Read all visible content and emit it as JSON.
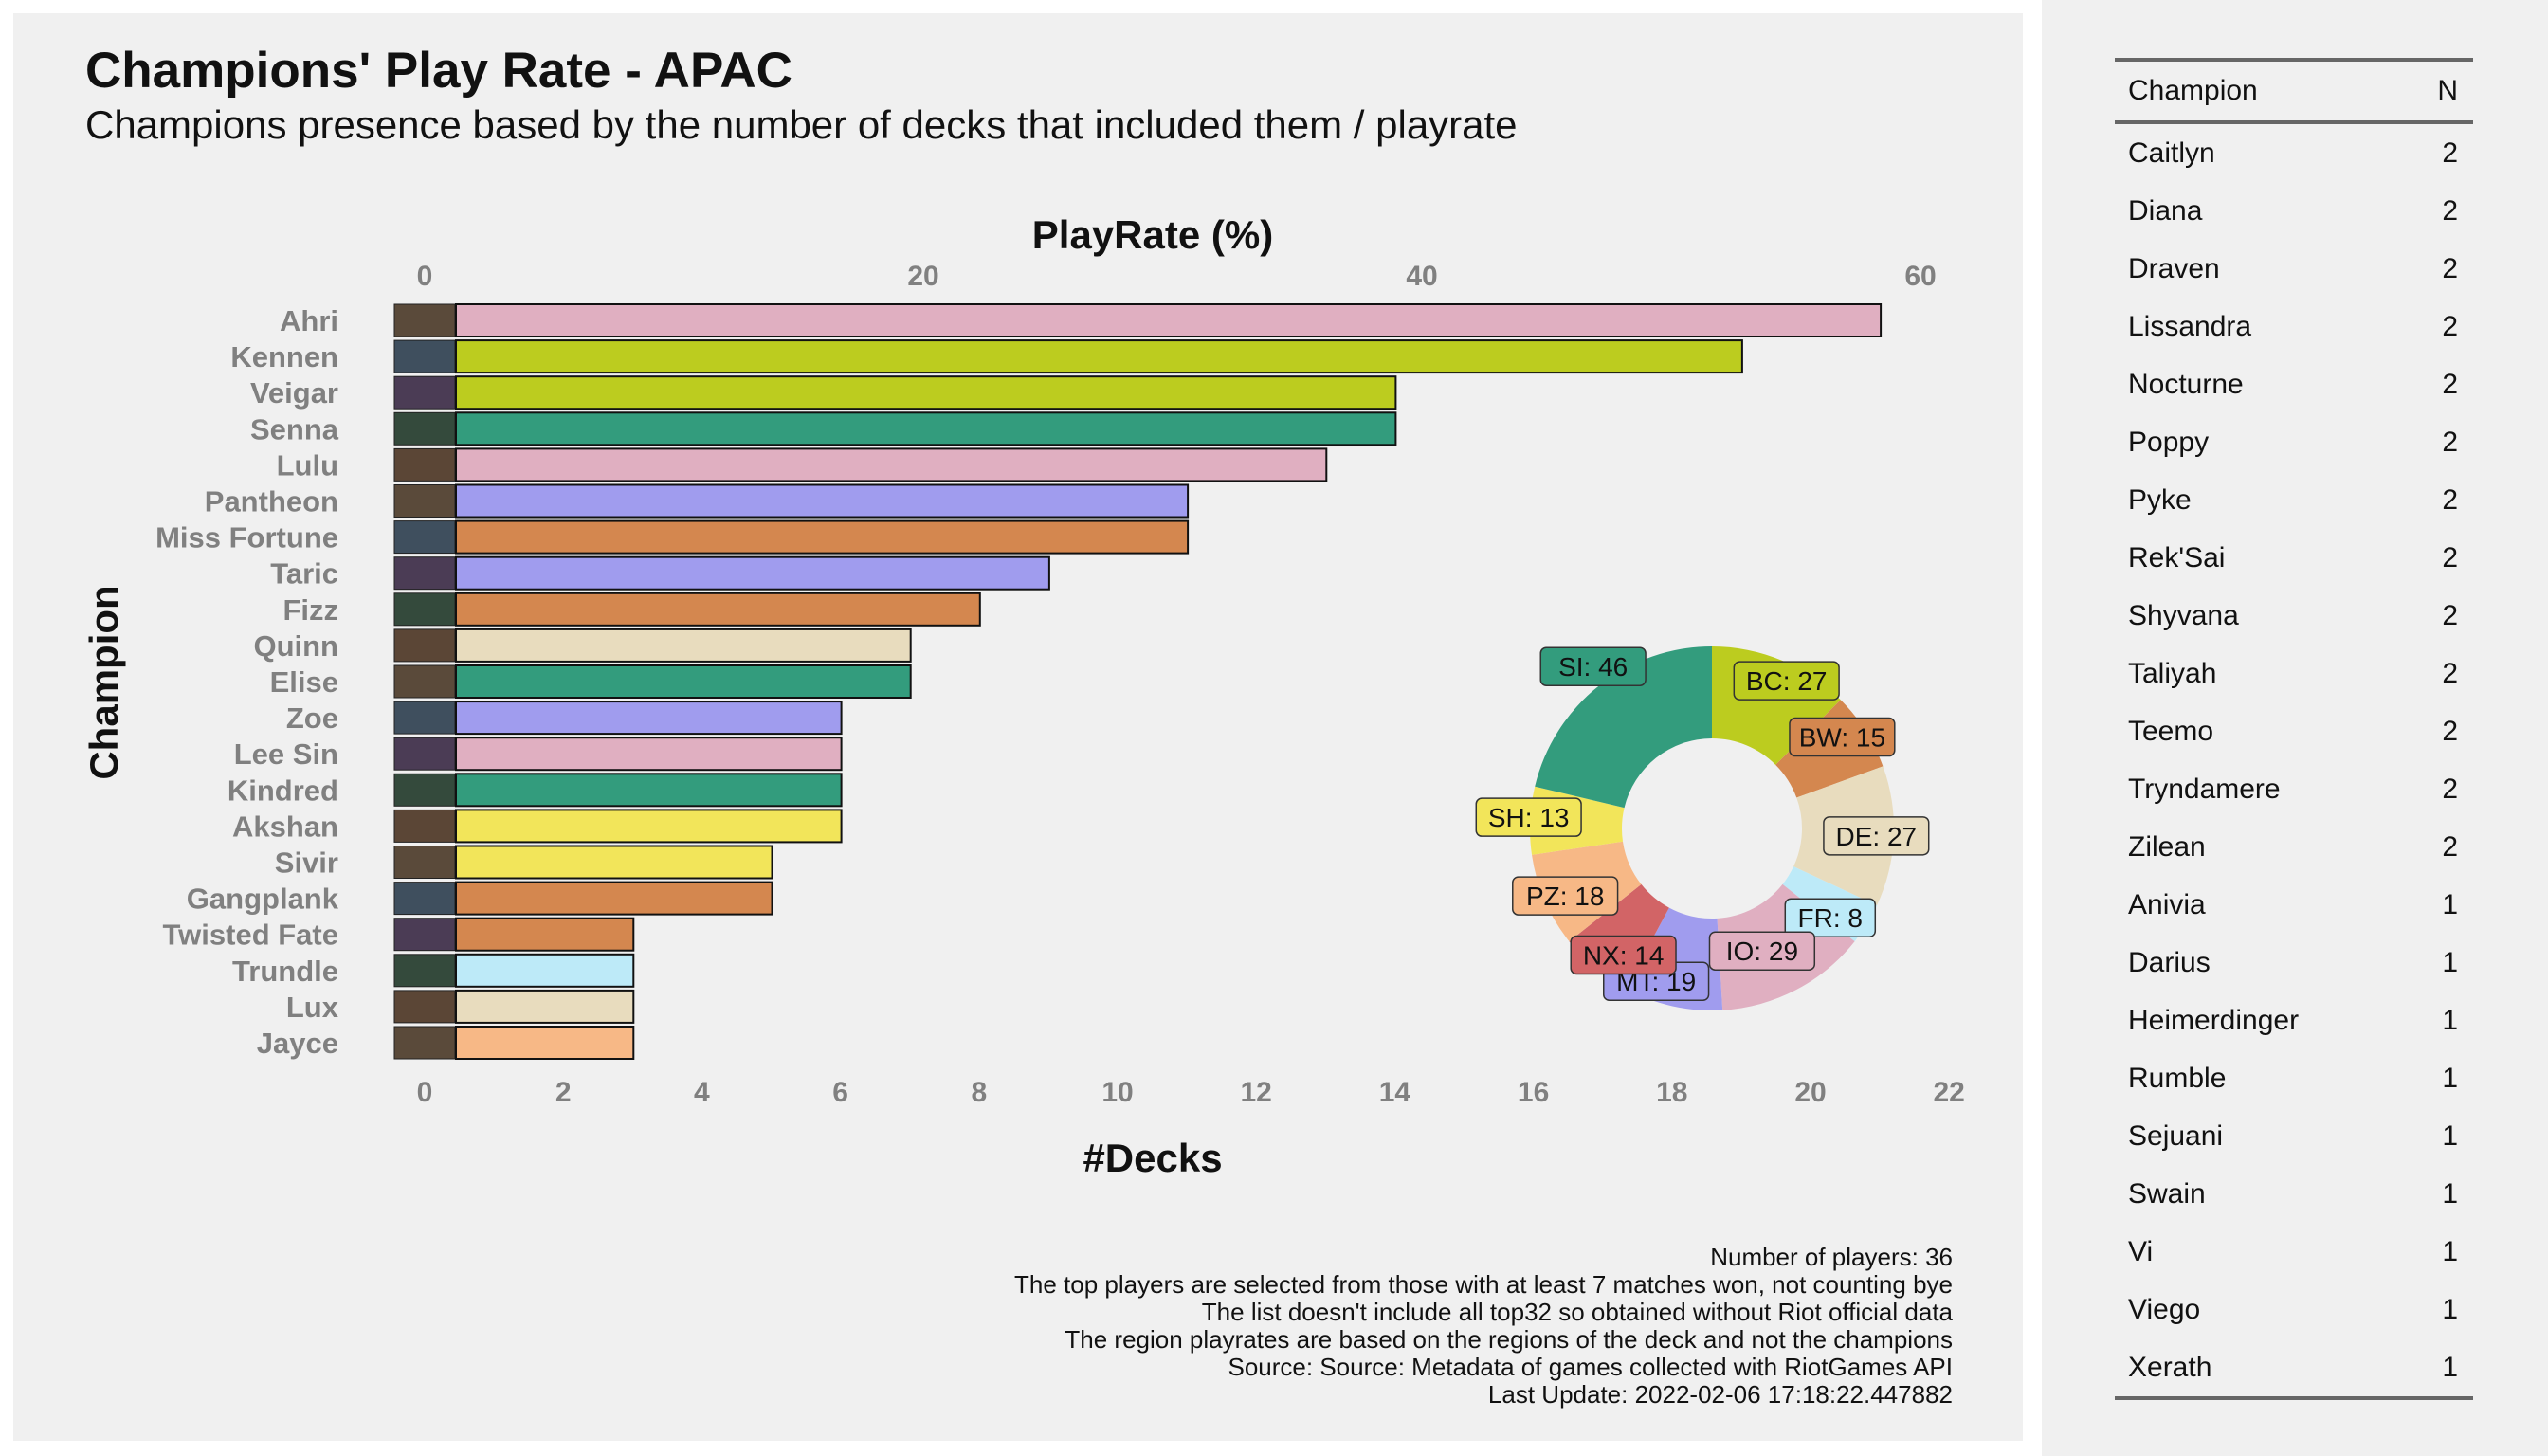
{
  "header": {
    "title": "Champions' Play Rate - APAC",
    "subtitle": "Champions presence based by the number of decks that included them / playrate"
  },
  "chart_data": [
    {
      "type": "bar",
      "orientation": "horizontal",
      "title": "Champions' Play Rate - APAC",
      "xlabel": "#Decks",
      "x2label": "PlayRate (%)",
      "ylabel": "Champion",
      "xlim": [
        0,
        22
      ],
      "x_ticks": [
        0,
        2,
        4,
        6,
        8,
        10,
        12,
        14,
        16,
        18,
        20,
        22
      ],
      "x2_ticks": [
        0,
        20,
        40,
        60
      ],
      "categories": [
        "Ahri",
        "Kennen",
        "Veigar",
        "Senna",
        "Lulu",
        "Pantheon",
        "Miss Fortune",
        "Taric",
        "Fizz",
        "Quinn",
        "Elise",
        "Zoe",
        "Lee Sin",
        "Kindred",
        "Akshan",
        "Sivir",
        "Gangplank",
        "Twisted Fate",
        "Trundle",
        "Lux",
        "Jayce"
      ],
      "values": [
        21,
        19,
        14,
        14,
        13,
        11,
        11,
        9,
        8,
        7,
        7,
        6,
        6,
        6,
        6,
        5,
        5,
        3,
        3,
        3,
        3
      ],
      "colors": [
        "#e0afc1",
        "#bccc1f",
        "#bccc1f",
        "#339c7d",
        "#e0afc1",
        "#a09cee",
        "#d4874f",
        "#a09cee",
        "#d4874f",
        "#e8dcbe",
        "#339c7d",
        "#a09cee",
        "#e0afc1",
        "#339c7d",
        "#f2e55a",
        "#f2e55a",
        "#d4874f",
        "#d4874f",
        "#bdeaf8",
        "#e8dcbe",
        "#f7b886"
      ]
    },
    {
      "type": "pie",
      "variant": "donut",
      "labels": [
        "BC",
        "BW",
        "DE",
        "FR",
        "IO",
        "MT",
        "NX",
        "PZ",
        "SH",
        "SI"
      ],
      "values": [
        27,
        15,
        27,
        8,
        29,
        19,
        14,
        18,
        13,
        46
      ],
      "label_texts": [
        "BC: 27",
        "BW: 15",
        "DE: 27",
        "FR: 8",
        "IO: 29",
        "MT: 19",
        "NX: 14",
        "PZ: 18",
        "SH: 13",
        "SI: 46"
      ],
      "colors": [
        "#bccc1f",
        "#d4874f",
        "#e8dcbe",
        "#bdeaf8",
        "#e0afc1",
        "#a09cee",
        "#d26466",
        "#f7b886",
        "#f2e55a",
        "#339c7d"
      ]
    }
  ],
  "notes": [
    "Number of players: 36",
    "The top players are selected from those with at least 7 matches won, not counting bye",
    "The list doesn't include all top32 so obtained without Riot official data",
    "The region playrates are based on the regions of the deck and not the champions",
    "Source: Source: Metadata of games collected with RiotGames API",
    "Last Update: 2022-02-06 17:18:22.447882"
  ],
  "table": {
    "headers": [
      "Champion",
      "N"
    ],
    "rows": [
      [
        "Caitlyn",
        "2"
      ],
      [
        "Diana",
        "2"
      ],
      [
        "Draven",
        "2"
      ],
      [
        "Lissandra",
        "2"
      ],
      [
        "Nocturne",
        "2"
      ],
      [
        "Poppy",
        "2"
      ],
      [
        "Pyke",
        "2"
      ],
      [
        "Rek'Sai",
        "2"
      ],
      [
        "Shyvana",
        "2"
      ],
      [
        "Taliyah",
        "2"
      ],
      [
        "Teemo",
        "2"
      ],
      [
        "Tryndamere",
        "2"
      ],
      [
        "Zilean",
        "2"
      ],
      [
        "Anivia",
        "1"
      ],
      [
        "Darius",
        "1"
      ],
      [
        "Heimerdinger",
        "1"
      ],
      [
        "Rumble",
        "1"
      ],
      [
        "Sejuani",
        "1"
      ],
      [
        "Swain",
        "1"
      ],
      [
        "Vi",
        "1"
      ],
      [
        "Viego",
        "1"
      ],
      [
        "Xerath",
        "1"
      ]
    ]
  }
}
